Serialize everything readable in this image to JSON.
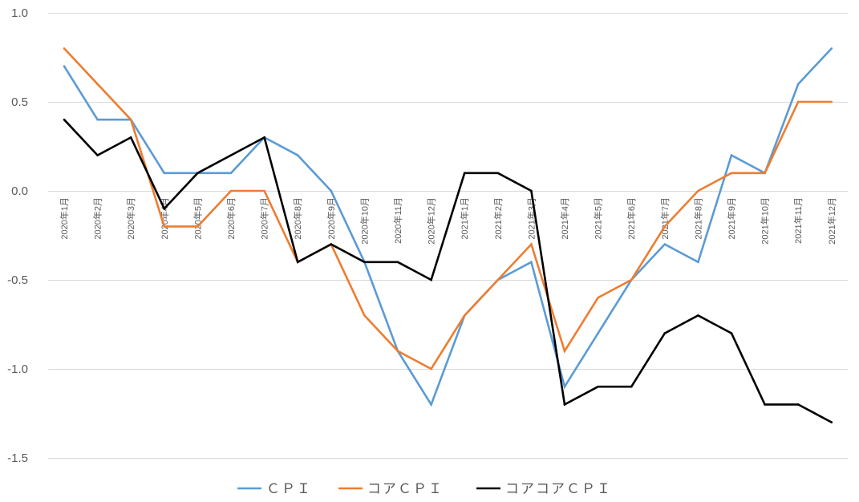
{
  "chart_data": {
    "type": "line",
    "title": "",
    "xlabel": "",
    "ylabel": "",
    "ylim": [
      -1.5,
      1.0
    ],
    "yticks": [
      1.0,
      0.5,
      0.0,
      -0.5,
      -1.0,
      -1.5
    ],
    "ytick_labels": [
      "1.0",
      "0.5",
      "0.0",
      "-0.5",
      "-1.0",
      "-1.5"
    ],
    "grid": "horizontal",
    "legend_position": "bottom",
    "categories": [
      "2020年1月",
      "2020年2月",
      "2020年3月",
      "2020年4月",
      "2020年5月",
      "2020年6月",
      "2020年7月",
      "2020年8月",
      "2020年9月",
      "2020年10月",
      "2020年11月",
      "2020年12月",
      "2021年1月",
      "2021年2月",
      "2021年3月",
      "2021年4月",
      "2021年5月",
      "2021年6月",
      "2021年7月",
      "2021年8月",
      "2021年9月",
      "2021年10月",
      "2021年11月",
      "2021年12月"
    ],
    "series": [
      {
        "name": "ＣＰＩ",
        "color": "#5b9bd5",
        "values": [
          0.7,
          0.4,
          0.4,
          0.1,
          0.1,
          0.1,
          0.3,
          0.2,
          0.0,
          -0.4,
          -0.9,
          -1.2,
          -0.7,
          -0.5,
          -0.4,
          -1.1,
          -0.8,
          -0.5,
          -0.3,
          -0.4,
          0.2,
          0.1,
          0.6,
          0.8
        ]
      },
      {
        "name": "コアＣＰＩ",
        "color": "#ed7d31",
        "values": [
          0.8,
          0.6,
          0.4,
          -0.2,
          -0.2,
          0.0,
          0.0,
          -0.4,
          -0.3,
          -0.7,
          -0.9,
          -1.0,
          -0.7,
          -0.5,
          -0.3,
          -0.9,
          -0.6,
          -0.5,
          -0.2,
          0.0,
          0.1,
          0.1,
          0.5,
          0.5
        ]
      },
      {
        "name": "コアコアＣＰＩ",
        "color": "#000000",
        "values": [
          0.4,
          0.2,
          0.3,
          -0.1,
          0.1,
          0.2,
          0.3,
          -0.4,
          -0.3,
          -0.4,
          -0.4,
          -0.5,
          0.1,
          0.1,
          0.0,
          -1.2,
          -1.1,
          -1.1,
          -0.8,
          -0.7,
          -0.8,
          -1.2,
          -1.2,
          -1.3
        ]
      }
    ]
  }
}
